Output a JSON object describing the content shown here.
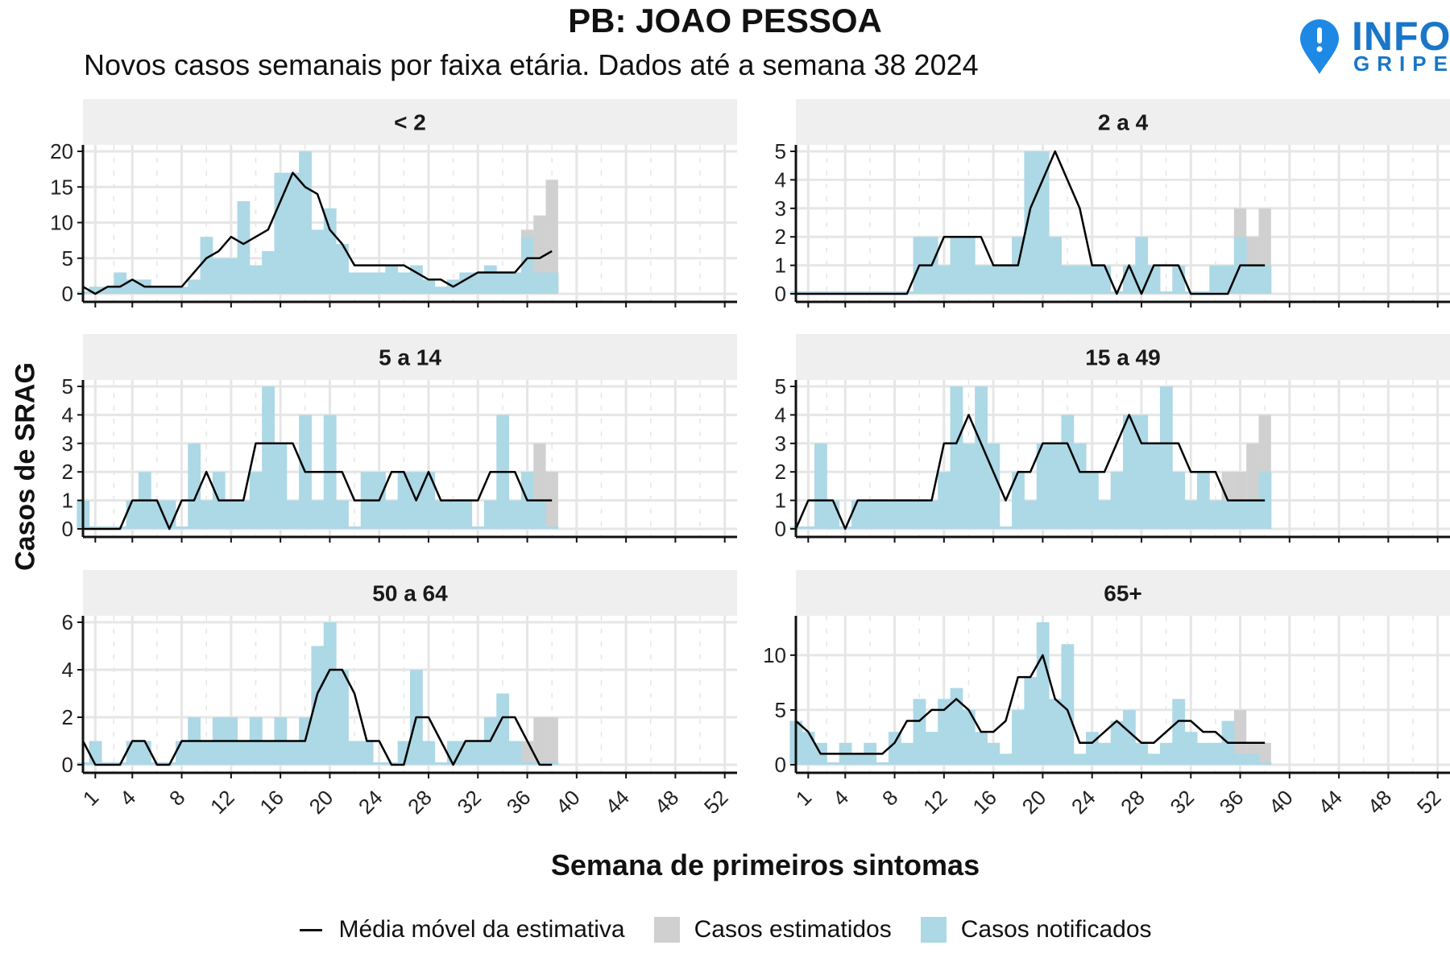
{
  "title": "PB: JOAO PESSOA",
  "subtitle": "Novos casos semanais por faixa etária. Dados até a semana 38 2024",
  "logo": {
    "line1": "INFO",
    "line2": "GRIPE"
  },
  "colors": {
    "notified": "#add8e6",
    "estimated": "#d0d0d0",
    "line": "#000000",
    "strip": "#efefef",
    "grid": "#e6e6e6"
  },
  "chart_data": {
    "type": "bar",
    "xlabel": "Semana de primeiros sintomas",
    "ylabel": "Casos de SRAG",
    "x_ticks": [
      1,
      4,
      8,
      12,
      16,
      20,
      24,
      28,
      32,
      36,
      40,
      44,
      48,
      52
    ],
    "xlim": [
      0,
      53
    ],
    "legend": [
      "Média móvel da estimativa",
      "Casos estimatidos",
      "Casos notificados"
    ],
    "legend_position": "bottom",
    "panels": [
      {
        "label": "< 2",
        "ylim": [
          0,
          20
        ],
        "y_ticks": [
          0,
          5,
          10,
          15,
          20
        ],
        "notified": [
          0,
          1,
          1,
          3,
          2,
          2,
          1,
          1,
          1,
          2,
          8,
          5,
          5,
          13,
          4,
          6,
          17,
          17,
          20,
          9,
          12,
          7,
          3,
          3,
          3,
          4,
          3,
          4,
          2,
          1,
          2,
          3,
          3,
          4,
          3,
          3,
          8,
          3,
          3
        ],
        "estimated": [
          [
            36,
            9
          ],
          [
            37,
            11
          ],
          [
            38,
            16
          ]
        ],
        "moving_avg": [
          1,
          0,
          1,
          1,
          2,
          1,
          1,
          1,
          1,
          3,
          5,
          6,
          8,
          7,
          8,
          9,
          13,
          17,
          15,
          14,
          9,
          7,
          4,
          4,
          4,
          4,
          4,
          3,
          2,
          2,
          1,
          2,
          3,
          3,
          3,
          3,
          5,
          5,
          6
        ]
      },
      {
        "label": "2 a 4",
        "ylim": [
          0,
          5
        ],
        "y_ticks": [
          0,
          1,
          2,
          3,
          4,
          5
        ],
        "notified": [
          0,
          0,
          0,
          0,
          0,
          0,
          0,
          0,
          0,
          0,
          2,
          2,
          1,
          2,
          2,
          1,
          1,
          1,
          2,
          5,
          5,
          2,
          1,
          1,
          1,
          1,
          0,
          1,
          2,
          1,
          0,
          1,
          0,
          0,
          1,
          1,
          2,
          1,
          1
        ],
        "estimated": [
          [
            36,
            3
          ],
          [
            37,
            2
          ],
          [
            38,
            3
          ]
        ],
        "moving_avg": [
          0,
          0,
          0,
          0,
          0,
          0,
          0,
          0,
          0,
          0,
          1,
          1,
          2,
          2,
          2,
          2,
          1,
          1,
          1,
          3,
          4,
          5,
          4,
          3,
          1,
          1,
          0,
          1,
          0,
          1,
          1,
          1,
          0,
          0,
          0,
          0,
          1,
          1,
          1
        ]
      },
      {
        "label": "5 a 14",
        "ylim": [
          0,
          5
        ],
        "y_ticks": [
          0,
          1,
          2,
          3,
          4,
          5
        ],
        "notified": [
          1,
          0,
          0,
          0,
          1,
          2,
          1,
          1,
          0,
          3,
          1,
          2,
          1,
          1,
          2,
          5,
          3,
          1,
          4,
          1,
          4,
          1,
          0,
          2,
          2,
          1,
          2,
          2,
          2,
          1,
          1,
          1,
          0,
          1,
          4,
          1,
          2,
          1,
          0
        ],
        "estimated": [
          [
            36,
            2
          ],
          [
            37,
            3
          ],
          [
            38,
            2
          ]
        ],
        "moving_avg": [
          0,
          0,
          0,
          0,
          1,
          1,
          1,
          0,
          1,
          1,
          2,
          1,
          1,
          1,
          3,
          3,
          3,
          3,
          2,
          2,
          2,
          2,
          1,
          1,
          1,
          2,
          2,
          1,
          2,
          1,
          1,
          1,
          1,
          2,
          2,
          2,
          1,
          1,
          1
        ]
      },
      {
        "label": "15 a 49",
        "ylim": [
          0,
          5
        ],
        "y_ticks": [
          0,
          1,
          2,
          3,
          4,
          5
        ],
        "notified": [
          0,
          0,
          3,
          1,
          0,
          1,
          1,
          1,
          1,
          1,
          1,
          1,
          2,
          5,
          3,
          5,
          3,
          0,
          2,
          1,
          3,
          3,
          4,
          3,
          2,
          1,
          2,
          4,
          4,
          3,
          5,
          2,
          1,
          2,
          1,
          1,
          1,
          1,
          2
        ],
        "estimated": [
          [
            35,
            2
          ],
          [
            36,
            2
          ],
          [
            37,
            3
          ],
          [
            38,
            4
          ]
        ],
        "moving_avg": [
          0,
          1,
          1,
          1,
          0,
          1,
          1,
          1,
          1,
          1,
          1,
          1,
          3,
          3,
          4,
          3,
          2,
          1,
          2,
          2,
          3,
          3,
          3,
          2,
          2,
          2,
          3,
          4,
          3,
          3,
          3,
          3,
          2,
          2,
          2,
          1,
          1,
          1,
          1
        ]
      },
      {
        "label": "50 a 64",
        "ylim": [
          0,
          6
        ],
        "y_ticks": [
          0,
          2,
          4,
          6
        ],
        "notified": [
          0,
          1,
          0,
          0,
          1,
          1,
          0,
          0,
          1,
          2,
          1,
          2,
          2,
          1,
          2,
          1,
          2,
          1,
          2,
          5,
          6,
          4,
          1,
          1,
          0,
          0,
          1,
          4,
          1,
          0,
          1,
          1,
          1,
          2,
          3,
          1,
          0,
          0,
          0
        ],
        "estimated": [
          [
            36,
            1
          ],
          [
            37,
            2
          ],
          [
            38,
            2
          ]
        ],
        "moving_avg": [
          1,
          0,
          0,
          0,
          1,
          1,
          0,
          0,
          1,
          1,
          1,
          1,
          1,
          1,
          1,
          1,
          1,
          1,
          1,
          3,
          4,
          4,
          3,
          1,
          1,
          0,
          0,
          2,
          2,
          1,
          0,
          1,
          1,
          1,
          2,
          2,
          1,
          0,
          0
        ]
      },
      {
        "label": "65+",
        "ylim": [
          0,
          13
        ],
        "y_ticks": [
          0,
          5,
          10
        ],
        "notified": [
          4,
          3,
          2,
          0,
          2,
          1,
          2,
          0,
          3,
          2,
          6,
          3,
          6,
          7,
          5,
          3,
          2,
          1,
          5,
          8,
          13,
          6,
          11,
          1,
          3,
          2,
          4,
          5,
          2,
          1,
          2,
          6,
          3,
          2,
          2,
          4,
          1,
          1,
          0
        ],
        "estimated": [
          [
            36,
            5
          ],
          [
            37,
            2
          ],
          [
            38,
            2
          ]
        ],
        "moving_avg": [
          4,
          3,
          1,
          1,
          1,
          1,
          1,
          1,
          2,
          4,
          4,
          5,
          5,
          6,
          5,
          3,
          3,
          4,
          8,
          8,
          10,
          6,
          5,
          2,
          2,
          3,
          4,
          3,
          2,
          2,
          3,
          4,
          4,
          3,
          3,
          2,
          2,
          2,
          2
        ]
      }
    ]
  }
}
